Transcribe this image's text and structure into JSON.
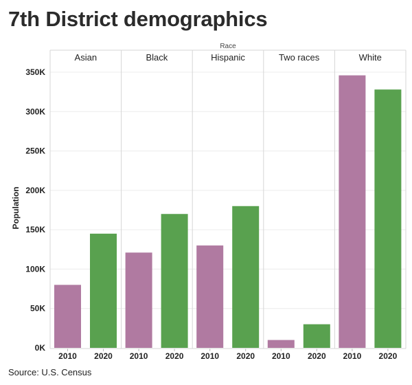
{
  "title": "7th District demographics",
  "source": "Source: U.S. Census",
  "chart_data": {
    "type": "bar",
    "facet_title": "Race",
    "ylabel": "Population",
    "ylim": [
      0,
      360000
    ],
    "yticks": [
      0,
      50000,
      100000,
      150000,
      200000,
      250000,
      300000,
      350000
    ],
    "ytick_labels": [
      "0K",
      "50K",
      "100K",
      "150K",
      "200K",
      "250K",
      "300K",
      "350K"
    ],
    "categories": [
      "2010",
      "2020"
    ],
    "colors": {
      "2010": "#b07aa1",
      "2020": "#59a14f"
    },
    "facets": [
      {
        "name": "Asian",
        "values": [
          80000,
          145000
        ]
      },
      {
        "name": "Black",
        "values": [
          121000,
          170000
        ]
      },
      {
        "name": "Hispanic",
        "values": [
          130000,
          180000
        ]
      },
      {
        "name": "Two races",
        "values": [
          10000,
          30000
        ]
      },
      {
        "name": "White",
        "values": [
          346000,
          328000
        ]
      }
    ],
    "grid": true
  }
}
